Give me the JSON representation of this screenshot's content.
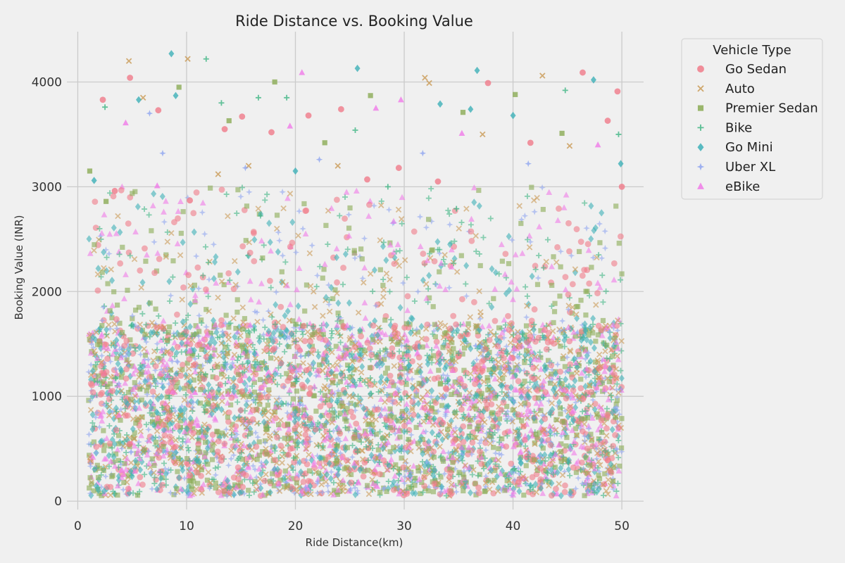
{
  "chart_data": {
    "type": "scatter",
    "title": "Ride Distance vs. Booking Value",
    "xlabel": "Ride Distance(km)",
    "ylabel": "Booking Value (INR)",
    "xlim": [
      -1,
      52
    ],
    "ylim": [
      -80,
      4480
    ],
    "xticks": [
      0,
      10,
      20,
      30,
      40,
      50
    ],
    "xtick_labels": [
      "0",
      "10",
      "20",
      "30",
      "40",
      "50"
    ],
    "yticks": [
      0,
      1000,
      2000,
      3000,
      4000
    ],
    "ytick_labels": [
      "0",
      "1000",
      "2000",
      "3000",
      "4000"
    ],
    "grid": true,
    "legend": {
      "title": "Vehicle Type",
      "placement": "outside-top-right"
    },
    "series": [
      {
        "name": "Go Sedan",
        "marker": "circle",
        "color": "#f07b89",
        "points": [
          [
            2.3,
            3830
          ],
          [
            3.4,
            2960
          ],
          [
            4.8,
            4040
          ],
          [
            7.4,
            3730
          ],
          [
            13.5,
            3550
          ],
          [
            17.8,
            3520
          ],
          [
            21.2,
            3680
          ],
          [
            24.2,
            3740
          ],
          [
            29.5,
            3180
          ],
          [
            37.7,
            3990
          ],
          [
            46.4,
            4090
          ],
          [
            49.6,
            3910
          ],
          [
            10.3,
            2870
          ],
          [
            15.1,
            3670
          ],
          [
            26.6,
            3070
          ],
          [
            33.1,
            3050
          ],
          [
            41.6,
            3420
          ],
          [
            48.7,
            3630
          ],
          [
            50.0,
            3000
          ]
        ]
      },
      {
        "name": "Auto",
        "marker": "x",
        "color": "#c99a55",
        "points": [
          [
            4.7,
            4200
          ],
          [
            10.1,
            4220
          ],
          [
            31.9,
            4040
          ],
          [
            32.3,
            3990
          ],
          [
            6.0,
            3850
          ],
          [
            42.7,
            4060
          ],
          [
            15.7,
            3200
          ],
          [
            37.2,
            3500
          ],
          [
            12.9,
            3120
          ],
          [
            23.9,
            3200
          ],
          [
            45.2,
            3390
          ]
        ]
      },
      {
        "name": "Premier Sedan",
        "marker": "square",
        "color": "#8bab55",
        "points": [
          [
            1.1,
            3150
          ],
          [
            2.6,
            2860
          ],
          [
            9.3,
            3950
          ],
          [
            18.1,
            4000
          ],
          [
            26.9,
            3870
          ],
          [
            13.9,
            3630
          ],
          [
            40.2,
            3880
          ],
          [
            35.4,
            3710
          ],
          [
            44.5,
            3510
          ],
          [
            22.7,
            3420
          ]
        ]
      },
      {
        "name": "Bike",
        "marker": "plus",
        "color": "#3fb583",
        "points": [
          [
            2.5,
            3760
          ],
          [
            11.8,
            4220
          ],
          [
            13.2,
            3800
          ],
          [
            16.6,
            3850
          ],
          [
            19.2,
            3850
          ],
          [
            25.5,
            3540
          ],
          [
            34.8,
            2790
          ],
          [
            44.8,
            3920
          ],
          [
            49.7,
            3500
          ],
          [
            28.5,
            3000
          ]
        ]
      },
      {
        "name": "Go Mini",
        "marker": "diamond",
        "color": "#3db0b8",
        "points": [
          [
            8.6,
            4270
          ],
          [
            25.7,
            4130
          ],
          [
            36.7,
            4110
          ],
          [
            47.4,
            4020
          ],
          [
            1.5,
            3060
          ],
          [
            5.6,
            3830
          ],
          [
            9.0,
            3870
          ],
          [
            40.0,
            3680
          ],
          [
            33.3,
            3790
          ],
          [
            49.9,
            3220
          ],
          [
            20.0,
            3150
          ],
          [
            36.1,
            3740
          ]
        ]
      },
      {
        "name": "Uber XL",
        "marker": "star",
        "color": "#8fa5f0",
        "points": [
          [
            6.6,
            3700
          ],
          [
            7.8,
            3320
          ],
          [
            31.7,
            3320
          ],
          [
            22.2,
            3260
          ],
          [
            41.4,
            3220
          ],
          [
            15.4,
            3180
          ]
        ]
      },
      {
        "name": "eBike",
        "marker": "triangle",
        "color": "#f07be8",
        "points": [
          [
            4.4,
            3610
          ],
          [
            20.6,
            4090
          ],
          [
            29.7,
            3830
          ],
          [
            27.4,
            3750
          ],
          [
            35.3,
            3510
          ],
          [
            7.3,
            3010
          ],
          [
            47.8,
            3400
          ],
          [
            19.5,
            3580
          ]
        ]
      }
    ]
  }
}
